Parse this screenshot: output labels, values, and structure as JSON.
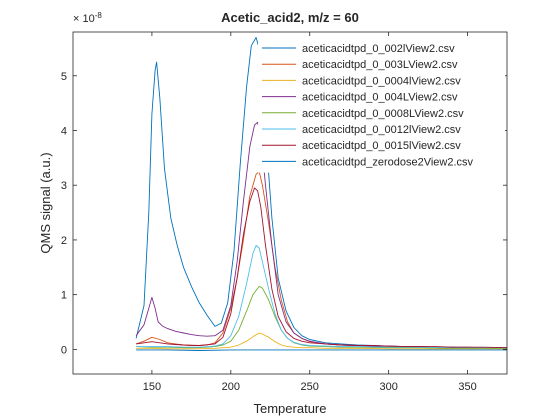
{
  "chart_data": {
    "type": "line",
    "title": "Acetic_acid2, m/z = 60",
    "xlabel": "Temperature",
    "ylabel": "QMS signal (a.u.)",
    "y_exponent_label": "× 10",
    "y_exponent_power": "-8",
    "xlim": [
      100,
      375
    ],
    "ylim": [
      -0.45,
      5.8
    ],
    "x_ticks": [
      150,
      200,
      250,
      300,
      350
    ],
    "x_tick_labels": [
      "150",
      "200",
      "250",
      "300",
      "350"
    ],
    "y_ticks": [
      0,
      1,
      2,
      3,
      4,
      5
    ],
    "y_tick_labels": [
      "0",
      "1",
      "2",
      "3",
      "4",
      "5"
    ],
    "grid": false,
    "legend_position": "top-right",
    "series": [
      {
        "name": "aceticacidtpd_0_002lView2.csv",
        "color": "#0072BD",
        "x": [
          140,
          145,
          148,
          150,
          152,
          153,
          155,
          158,
          162,
          166,
          170,
          175,
          180,
          185,
          190,
          194,
          198,
          202,
          206,
          210,
          213,
          216,
          218,
          220,
          223,
          226,
          230,
          235,
          240,
          245,
          250,
          260,
          270,
          280,
          290,
          300,
          310,
          320,
          330,
          340,
          350,
          360,
          375
        ],
        "y": [
          0.2,
          0.8,
          2.5,
          4.3,
          5.1,
          5.25,
          4.6,
          3.3,
          2.4,
          1.9,
          1.5,
          1.15,
          0.85,
          0.62,
          0.42,
          0.48,
          0.85,
          1.8,
          3.4,
          4.8,
          5.55,
          5.7,
          5.5,
          4.9,
          3.6,
          2.4,
          1.3,
          0.7,
          0.4,
          0.25,
          0.18,
          0.12,
          0.1,
          0.08,
          0.07,
          0.06,
          0.05,
          0.05,
          0.04,
          0.04,
          0.03,
          0.03,
          0.03
        ]
      },
      {
        "name": "aceticacidtpd_0_003LView2.csv",
        "color": "#D95319",
        "x": [
          140,
          145,
          150,
          155,
          160,
          165,
          170,
          175,
          180,
          185,
          190,
          195,
          200,
          204,
          208,
          212,
          216,
          218,
          220,
          224,
          228,
          232,
          236,
          240,
          245,
          250,
          260,
          270,
          280,
          290,
          300,
          310,
          320,
          330,
          340,
          350,
          360,
          375
        ],
        "y": [
          0.1,
          0.15,
          0.22,
          0.18,
          0.12,
          0.1,
          0.08,
          0.07,
          0.07,
          0.08,
          0.12,
          0.3,
          0.75,
          1.3,
          2.0,
          2.8,
          3.2,
          3.25,
          3.0,
          2.3,
          1.5,
          0.9,
          0.5,
          0.3,
          0.2,
          0.14,
          0.1,
          0.08,
          0.07,
          0.06,
          0.05,
          0.05,
          0.04,
          0.04,
          0.03,
          0.03,
          0.03,
          0.02
        ]
      },
      {
        "name": "aceticacidtpd_0_0004lView2.csv",
        "color": "#EDB120",
        "x": [
          140,
          150,
          160,
          170,
          180,
          190,
          200,
          205,
          210,
          215,
          218,
          220,
          224,
          228,
          232,
          236,
          240,
          245,
          250,
          260,
          270,
          280,
          300,
          320,
          340,
          360,
          375
        ],
        "y": [
          0.02,
          0.02,
          0.01,
          0.01,
          0.01,
          0.02,
          0.04,
          0.08,
          0.15,
          0.25,
          0.3,
          0.28,
          0.22,
          0.14,
          0.08,
          0.05,
          0.04,
          0.03,
          0.03,
          0.02,
          0.02,
          0.02,
          0.01,
          0.01,
          0.01,
          0.01,
          0.01
        ]
      },
      {
        "name": "aceticacidtpd_0_004LView2.csv",
        "color": "#7E2F8E",
        "x": [
          140,
          145,
          148,
          150,
          152,
          154,
          157,
          160,
          165,
          170,
          175,
          180,
          185,
          190,
          195,
          200,
          204,
          208,
          212,
          215,
          217,
          219,
          222,
          226,
          230,
          235,
          240,
          245,
          250,
          260,
          270,
          280,
          290,
          300,
          310,
          320,
          330,
          340,
          350,
          360,
          375
        ],
        "y": [
          0.25,
          0.45,
          0.75,
          0.95,
          0.75,
          0.5,
          0.42,
          0.38,
          0.33,
          0.3,
          0.27,
          0.25,
          0.24,
          0.25,
          0.35,
          0.8,
          1.6,
          2.7,
          3.7,
          4.1,
          4.15,
          3.9,
          3.0,
          1.9,
          1.0,
          0.5,
          0.3,
          0.2,
          0.15,
          0.1,
          0.08,
          0.07,
          0.06,
          0.06,
          0.05,
          0.05,
          0.04,
          0.04,
          0.04,
          0.03,
          0.03
        ]
      },
      {
        "name": "aceticacidtpd_0_0008LView2.csv",
        "color": "#77AC30",
        "x": [
          140,
          150,
          160,
          170,
          180,
          190,
          195,
          200,
          205,
          210,
          214,
          218,
          220,
          224,
          228,
          232,
          236,
          240,
          245,
          250,
          260,
          270,
          280,
          300,
          320,
          340,
          360,
          375
        ],
        "y": [
          0.05,
          0.04,
          0.04,
          0.03,
          0.03,
          0.05,
          0.08,
          0.15,
          0.35,
          0.7,
          1.0,
          1.15,
          1.12,
          0.9,
          0.6,
          0.35,
          0.2,
          0.12,
          0.08,
          0.06,
          0.05,
          0.04,
          0.04,
          0.03,
          0.03,
          0.02,
          0.02,
          0.02
        ]
      },
      {
        "name": "aceticacidtpd_0_0012lView2.csv",
        "color": "#4DBEEE",
        "x": [
          140,
          150,
          160,
          170,
          180,
          190,
          195,
          200,
          205,
          210,
          214,
          216,
          218,
          220,
          224,
          228,
          232,
          236,
          240,
          245,
          250,
          260,
          270,
          280,
          300,
          320,
          340,
          360,
          375
        ],
        "y": [
          0.05,
          0.05,
          0.05,
          0.04,
          0.04,
          0.06,
          0.1,
          0.25,
          0.6,
          1.2,
          1.75,
          1.9,
          1.85,
          1.6,
          1.1,
          0.65,
          0.35,
          0.2,
          0.13,
          0.09,
          0.07,
          0.06,
          0.05,
          0.05,
          0.04,
          0.04,
          0.03,
          0.03,
          0.03
        ]
      },
      {
        "name": "aceticacidtpd_0_0015lView2.csv",
        "color": "#A2142F",
        "x": [
          140,
          145,
          150,
          155,
          160,
          165,
          170,
          180,
          190,
          195,
          200,
          204,
          208,
          212,
          215,
          217,
          219,
          222,
          226,
          230,
          235,
          240,
          245,
          250,
          260,
          270,
          280,
          290,
          300,
          310,
          320,
          330,
          340,
          350,
          360,
          375
        ],
        "y": [
          0.1,
          0.12,
          0.14,
          0.12,
          0.1,
          0.09,
          0.08,
          0.07,
          0.1,
          0.22,
          0.65,
          1.3,
          2.1,
          2.7,
          2.95,
          2.9,
          2.6,
          1.9,
          1.1,
          0.6,
          0.32,
          0.2,
          0.15,
          0.12,
          0.1,
          0.08,
          0.07,
          0.07,
          0.06,
          0.05,
          0.05,
          0.05,
          0.04,
          0.04,
          0.04,
          0.03
        ]
      },
      {
        "name": "aceticacidtpd_zerodose2View2.csv",
        "color": "#0072BD",
        "x": [
          140,
          160,
          180,
          200,
          220,
          240,
          260,
          280,
          300,
          320,
          340,
          360,
          375
        ],
        "y": [
          -0.01,
          -0.01,
          -0.02,
          -0.01,
          -0.01,
          -0.01,
          -0.01,
          -0.01,
          -0.01,
          -0.01,
          -0.01,
          -0.01,
          -0.01
        ]
      }
    ]
  }
}
